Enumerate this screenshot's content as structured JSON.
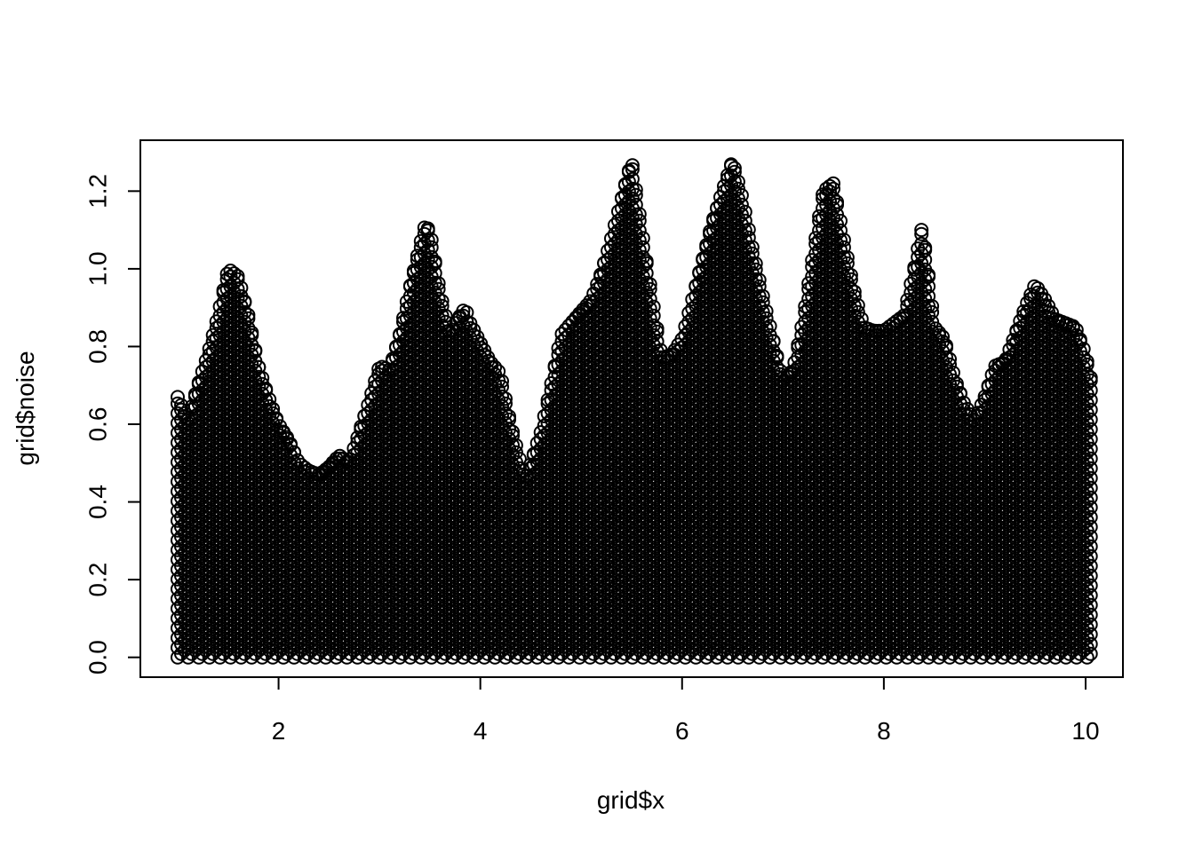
{
  "chart_data": {
    "type": "scatter",
    "xlabel": "grid$x",
    "ylabel": "grid$noise",
    "xlim": [
      0.63,
      10.37
    ],
    "ylim": [
      -0.051,
      1.331
    ],
    "x_ticks": [
      2,
      4,
      6,
      8,
      10
    ],
    "y_ticks": [
      0.0,
      0.2,
      0.4,
      0.6,
      0.8,
      1.0,
      1.2
    ],
    "x_tick_labels": [
      "2",
      "4",
      "6",
      "8",
      "10"
    ],
    "y_tick_labels": [
      "0.0",
      "0.2",
      "0.4",
      "0.6",
      "0.8",
      "1.0",
      "1.2"
    ],
    "grid": false,
    "marker": "open-circle",
    "color": "#000000",
    "series": [
      {
        "x": [
          1.0,
          1.1,
          1.2,
          1.3,
          1.4,
          1.5,
          1.6,
          1.7,
          1.8,
          1.9,
          2.0,
          2.1,
          2.2,
          2.3,
          2.4,
          2.5,
          2.6,
          2.7,
          2.8,
          2.9,
          3.0,
          3.1,
          3.2,
          3.3,
          3.4,
          3.45,
          3.5,
          3.6,
          3.7,
          3.8,
          3.85,
          3.9,
          4.0,
          4.1,
          4.2,
          4.3,
          4.4,
          4.45,
          4.5,
          4.6,
          4.7,
          4.8,
          4.9,
          5.0,
          5.1,
          5.2,
          5.3,
          5.4,
          5.5,
          5.6,
          5.7,
          5.8,
          5.9,
          6.0,
          6.1,
          6.2,
          6.3,
          6.4,
          6.5,
          6.6,
          6.7,
          6.8,
          6.9,
          7.0,
          7.1,
          7.2,
          7.3,
          7.4,
          7.5,
          7.6,
          7.7,
          7.8,
          7.9,
          8.0,
          8.1,
          8.2,
          8.3,
          8.38,
          8.45,
          8.5,
          8.6,
          8.7,
          8.8,
          8.9,
          9.0,
          9.1,
          9.2,
          9.3,
          9.4,
          9.5,
          9.6,
          9.7,
          9.8,
          9.9,
          10.0,
          10.05
        ],
        "y": [
          0.67,
          0.61,
          0.7,
          0.78,
          0.88,
          1.0,
          0.98,
          0.88,
          0.75,
          0.67,
          0.6,
          0.56,
          0.5,
          0.48,
          0.47,
          0.49,
          0.52,
          0.5,
          0.58,
          0.66,
          0.75,
          0.74,
          0.83,
          0.95,
          1.06,
          1.11,
          1.1,
          0.94,
          0.83,
          0.88,
          0.9,
          0.86,
          0.81,
          0.76,
          0.73,
          0.6,
          0.5,
          0.46,
          0.5,
          0.58,
          0.7,
          0.83,
          0.86,
          0.89,
          0.92,
          0.99,
          1.08,
          1.18,
          1.28,
          1.1,
          0.93,
          0.77,
          0.78,
          0.82,
          0.92,
          1.02,
          1.12,
          1.2,
          1.28,
          1.18,
          1.05,
          0.93,
          0.82,
          0.71,
          0.74,
          0.87,
          1.04,
          1.2,
          1.22,
          1.08,
          0.95,
          0.85,
          0.84,
          0.84,
          0.86,
          0.88,
          1.0,
          1.11,
          0.97,
          0.85,
          0.82,
          0.72,
          0.65,
          0.61,
          0.67,
          0.75,
          0.76,
          0.83,
          0.9,
          0.96,
          0.92,
          0.87,
          0.86,
          0.85,
          0.78,
          0.72
        ]
      }
    ]
  }
}
